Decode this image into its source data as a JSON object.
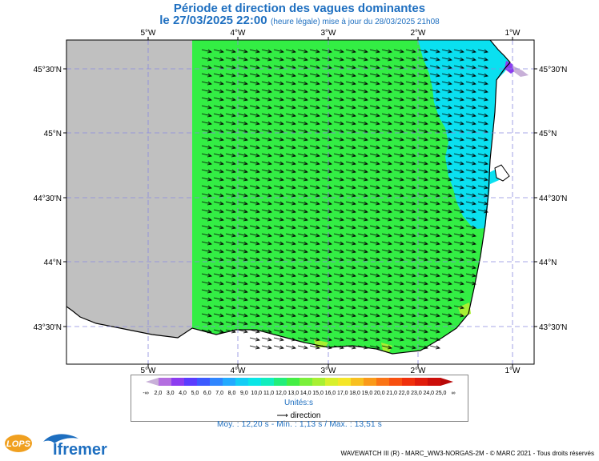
{
  "title": "Période et direction des vagues dominantes",
  "subtitle_main": "le 27/03/2025 22:00",
  "subtitle_small": "(heure légale) mise à jour du 28/03/2025 21h08",
  "lon_labels": [
    "5°W",
    "4°W",
    "3°W",
    "2°W",
    "1°W"
  ],
  "lat_labels": [
    "45°30'N",
    "45°N",
    "44°30'N",
    "44°N",
    "43°30'N"
  ],
  "legend": {
    "ticks": [
      "-∞",
      "2,0",
      "3,0",
      "4,0",
      "5,0",
      "6,0",
      "7,0",
      "8,0",
      "9,0",
      "10,0",
      "11,0",
      "12,0",
      "13,0",
      "14,0",
      "15,0",
      "16,0",
      "17,0",
      "18,0",
      "19,0",
      "20,0",
      "21,0",
      "22,0",
      "23,0",
      "24,0",
      "25,0",
      "∞"
    ],
    "colors": [
      "#c8b0d8",
      "#b46ee0",
      "#8c3cf0",
      "#5a3cff",
      "#3c5aff",
      "#2f86ff",
      "#23aaff",
      "#14cdf5",
      "#0ae6e6",
      "#11eebe",
      "#22ee7a",
      "#44ee44",
      "#7af03a",
      "#a8f032",
      "#d8f02c",
      "#f5e628",
      "#f8c020",
      "#fa9a1a",
      "#fa7416",
      "#f85010",
      "#f0300c",
      "#e01c0c",
      "#cc0e0a",
      "#b80808"
    ],
    "units": "Unités:s",
    "direction_label": "direction"
  },
  "stats": {
    "text": "Moy. : 12,20 s   -   Min. : 1,13 s / Max. : 13,51 s"
  },
  "credit": "WAVEWATCH III (R) - MARC_WW3-NORGAS-2M - © MARC 2021 - Tous droits réservés",
  "logos": {
    "lops": "LOPS",
    "ifremer": "Ifremer"
  },
  "colors": {
    "land_out_of_domain": "#c0c0c0",
    "main_period": "#33ee44",
    "coastal_period": "#0ae0f0",
    "title_blue": "#1e6fc0"
  }
}
